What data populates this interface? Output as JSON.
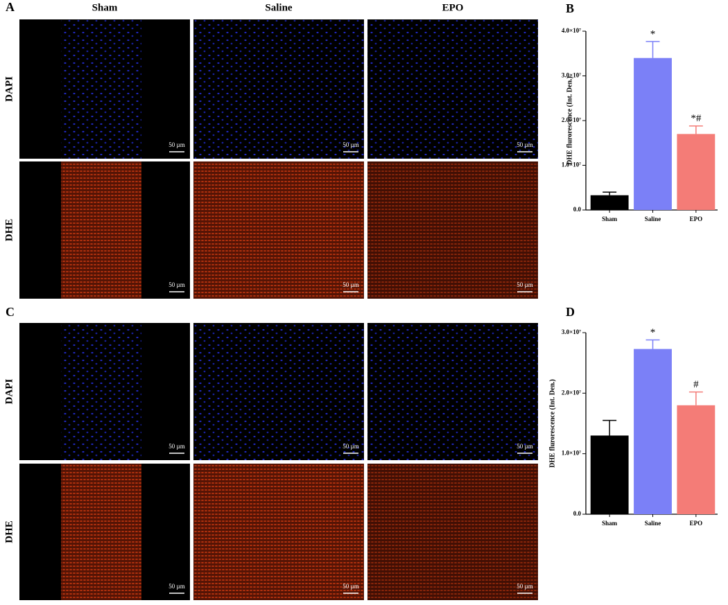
{
  "figure": {
    "panel_labels": [
      "A",
      "B",
      "C",
      "D"
    ],
    "columns": [
      "Sham",
      "Saline",
      "EPO"
    ],
    "rows": [
      "DAPI",
      "DHE"
    ],
    "scale_bar": "50 µm"
  },
  "chart_data": [
    {
      "type": "bar",
      "y_label": "DHE flurorescence (Int. Den.)",
      "categories": [
        "Sham",
        "Saline",
        "EPO"
      ],
      "values": [
        3300000,
        34000000,
        17000000
      ],
      "errors": [
        700000,
        3700000,
        1800000
      ],
      "colors": [
        "#000000",
        "#7b80f7",
        "#f47c77"
      ],
      "annotations": [
        {
          "category": "Saline",
          "text": "*"
        },
        {
          "category": "EPO",
          "text": "*#"
        }
      ],
      "ylim": [
        0,
        40000000
      ],
      "yticks": [
        {
          "value": 0,
          "label": "0.0"
        },
        {
          "value": 10000000,
          "label": "1.0×10⁷"
        },
        {
          "value": 20000000,
          "label": "2.0×10⁷"
        },
        {
          "value": 30000000,
          "label": "3.0×10⁷"
        },
        {
          "value": 40000000,
          "label": "4.0×10⁷"
        }
      ]
    },
    {
      "type": "bar",
      "y_label": "DHE flurorescence (Int. Den.)",
      "categories": [
        "Sham",
        "Saline",
        "EPO"
      ],
      "values": [
        13000000,
        27300000,
        18000000
      ],
      "errors": [
        2500000,
        1500000,
        2200000
      ],
      "colors": [
        "#000000",
        "#7b80f7",
        "#f47c77"
      ],
      "annotations": [
        {
          "category": "Saline",
          "text": "*"
        },
        {
          "category": "EPO",
          "text": "#"
        }
      ],
      "ylim": [
        0,
        30000000
      ],
      "yticks": [
        {
          "value": 0,
          "label": "0.0"
        },
        {
          "value": 10000000,
          "label": "1.0×10⁷"
        },
        {
          "value": 20000000,
          "label": "2.0×10⁷"
        },
        {
          "value": 30000000,
          "label": "3.0×10⁷"
        }
      ]
    }
  ]
}
